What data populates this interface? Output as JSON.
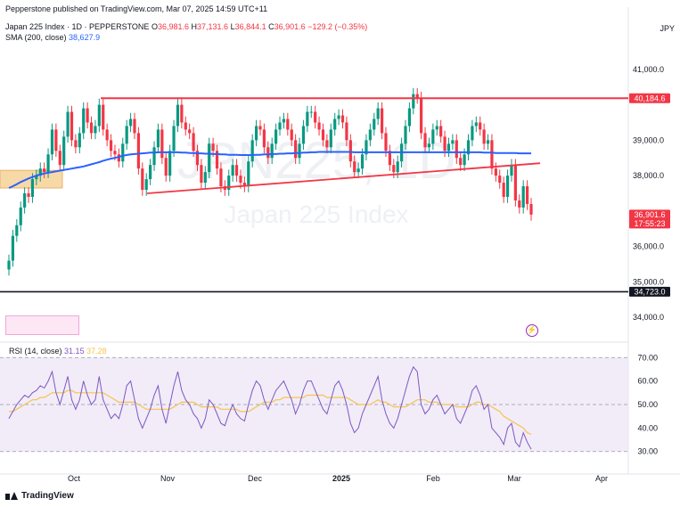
{
  "publisher": "Pepperstone published on TradingView.com, Mar 07, 2025 14:59 UTC+11",
  "symbol": {
    "name": "Japan 225 Index · 1D · PEPPERSTONE",
    "o_label": "O",
    "o": "36,981.6",
    "h_label": "H",
    "h": "37,131.6",
    "l_label": "L",
    "l": "36,844.1",
    "c_label": "C",
    "c": "36,901.6",
    "change": "−129.2 (−0.35%)"
  },
  "sma": {
    "label": "SMA (200, close)",
    "value": "38,627.9"
  },
  "rsi": {
    "label": "RSI (14, close)",
    "value": "31.15",
    "ma_value": "37.28"
  },
  "currency": "JPY",
  "watermark": {
    "symbol": "JPN225, 1D",
    "name": "Japan 225 Index"
  },
  "price_tags": [
    {
      "text": "40,184.6",
      "color": "#f23645"
    },
    {
      "text": "36,901.6",
      "color": "#f23645"
    },
    {
      "text": "17:55:23",
      "color": "#f23645"
    },
    {
      "text": "34,723.0",
      "color": "#131722"
    }
  ],
  "footer": "TradingView",
  "colors": {
    "up": "#089981",
    "down": "#f23645",
    "sma": "#2962ff",
    "rsi": "#7e57c2",
    "rsi_ma": "#f7c34c"
  },
  "chart_data": [
    {
      "type": "candlestick",
      "title": "Japan 225 Index",
      "x_ticks": [
        "Oct",
        "Nov",
        "Dec",
        "2025",
        "Feb",
        "Mar",
        "Apr"
      ],
      "y_ticks": [
        "41,000.0",
        "39,000.0",
        "38,000.0",
        "36,000.0",
        "35,000.0",
        "34,000.0"
      ],
      "ylim": [
        33400,
        41700
      ],
      "close": [
        35600,
        36300,
        36600,
        37100,
        37500,
        37400,
        37900,
        38000,
        38200,
        38100,
        38600,
        39300,
        38700,
        38300,
        39100,
        39800,
        39000,
        38800,
        39200,
        39900,
        39500,
        39200,
        39400,
        40000,
        39300,
        39000,
        38700,
        38600,
        38400,
        38900,
        39400,
        39600,
        39200,
        38200,
        37600,
        37900,
        38300,
        38800,
        39300,
        38500,
        38000,
        38700,
        39400,
        40000,
        39500,
        39300,
        39200,
        38700,
        38300,
        37800,
        38100,
        38900,
        38700,
        38200,
        37700,
        37600,
        38000,
        38300,
        38000,
        37800,
        37700,
        38400,
        39000,
        39400,
        39300,
        38800,
        38500,
        38900,
        39300,
        39500,
        39600,
        39300,
        39000,
        38500,
        38900,
        39400,
        39800,
        39800,
        39500,
        39300,
        39000,
        38800,
        39300,
        39600,
        39700,
        39500,
        39000,
        38400,
        38100,
        38200,
        38600,
        39000,
        39300,
        39600,
        39900,
        39200,
        38700,
        38300,
        38100,
        38400,
        38900,
        39400,
        39900,
        40300,
        40200,
        39200,
        38800,
        38900,
        39300,
        39400,
        39100,
        38700,
        38900,
        39000,
        38500,
        38300,
        38600,
        39000,
        39400,
        39500,
        39300,
        38900,
        39000,
        38200,
        38000,
        37800,
        37400,
        38000,
        38300,
        37300,
        37100,
        37700,
        37200,
        36900
      ],
      "sma": [
        37650,
        37700,
        37760,
        37820,
        37870,
        37920,
        37960,
        38000,
        38030,
        38060,
        38080,
        38100,
        38120,
        38140,
        38160,
        38180,
        38200,
        38220,
        38240,
        38260,
        38290,
        38320,
        38350,
        38380,
        38420,
        38450,
        38480,
        38500,
        38530,
        38560,
        38580,
        38600,
        38610,
        38620,
        38630,
        38640,
        38650,
        38650,
        38660,
        38660,
        38660,
        38660,
        38660,
        38660,
        38650,
        38650,
        38640,
        38640,
        38630,
        38630,
        38620,
        38620,
        38610,
        38610,
        38600,
        38600,
        38590,
        38590,
        38590,
        38580,
        38580,
        38580,
        38580,
        38590,
        38590,
        38600,
        38600,
        38610,
        38610,
        38620,
        38620,
        38630,
        38630,
        38640,
        38640,
        38650,
        38650,
        38660,
        38660,
        38670,
        38670,
        38670,
        38670,
        38670,
        38670,
        38670,
        38670,
        38670,
        38660,
        38660,
        38660,
        38660,
        38660,
        38660,
        38660,
        38660,
        38660,
        38660,
        38660,
        38660,
        38660,
        38660,
        38660,
        38660,
        38660,
        38660,
        38660,
        38660,
        38660,
        38660,
        38660,
        38660,
        38660,
        38660,
        38660,
        38660,
        38660,
        38660,
        38660,
        38660,
        38660,
        38650,
        38650,
        38650,
        38640,
        38640,
        38640,
        38640,
        38640,
        38640,
        38630,
        38630,
        38630,
        38628
      ],
      "lines": [
        {
          "name": "resistance",
          "price": 40184.6
        },
        {
          "name": "rising-support",
          "from": 37500,
          "to": 38350
        },
        {
          "name": "support",
          "price": 34723.0
        }
      ],
      "shaded_zone": [
        37650,
        38150
      ]
    },
    {
      "type": "line",
      "title": "RSI (14, close)",
      "y_ticks": [
        "70.00",
        "60.00",
        "50.00",
        "40.00",
        "30.00"
      ],
      "ylim": [
        28,
        72
      ],
      "levels": [
        70,
        50,
        30
      ],
      "rsi": [
        44,
        47,
        50,
        52,
        54,
        53,
        55,
        56,
        58,
        57,
        60,
        64,
        55,
        50,
        56,
        62,
        52,
        48,
        52,
        60,
        54,
        50,
        52,
        62,
        52,
        48,
        44,
        46,
        44,
        50,
        58,
        60,
        52,
        44,
        40,
        44,
        48,
        54,
        58,
        48,
        42,
        50,
        58,
        64,
        56,
        52,
        50,
        46,
        44,
        40,
        44,
        52,
        50,
        46,
        42,
        41,
        46,
        50,
        46,
        44,
        43,
        50,
        56,
        60,
        58,
        52,
        48,
        52,
        56,
        58,
        60,
        56,
        52,
        46,
        50,
        56,
        60,
        60,
        56,
        52,
        48,
        46,
        52,
        58,
        60,
        56,
        50,
        42,
        38,
        40,
        46,
        50,
        54,
        58,
        62,
        52,
        46,
        42,
        40,
        44,
        50,
        56,
        62,
        66,
        64,
        50,
        46,
        48,
        52,
        54,
        50,
        46,
        48,
        50,
        44,
        42,
        46,
        50,
        56,
        58,
        54,
        48,
        50,
        40,
        38,
        36,
        33,
        40,
        42,
        34,
        32,
        38,
        34,
        31
      ],
      "rsi_ma": [
        47,
        47,
        48,
        49,
        50,
        51,
        52,
        52,
        53,
        53,
        54,
        55,
        55,
        55,
        55,
        56,
        56,
        55,
        55,
        55,
        55,
        55,
        55,
        55,
        55,
        54,
        53,
        52,
        51,
        51,
        51,
        51,
        51,
        50,
        49,
        48,
        48,
        48,
        48,
        48,
        48,
        48,
        49,
        50,
        51,
        51,
        51,
        51,
        50,
        49,
        49,
        49,
        49,
        49,
        48,
        48,
        48,
        48,
        48,
        47,
        47,
        47,
        48,
        49,
        50,
        51,
        51,
        51,
        52,
        52,
        53,
        53,
        53,
        53,
        53,
        53,
        54,
        54,
        54,
        54,
        54,
        53,
        53,
        53,
        53,
        53,
        53,
        52,
        51,
        50,
        50,
        50,
        50,
        51,
        52,
        51,
        51,
        50,
        49,
        49,
        49,
        49,
        50,
        51,
        52,
        52,
        52,
        51,
        51,
        51,
        50,
        50,
        50,
        50,
        49,
        49,
        49,
        49,
        50,
        51,
        51,
        50,
        50,
        49,
        48,
        47,
        45,
        44,
        43,
        42,
        41,
        40,
        38,
        37.28
      ]
    }
  ]
}
